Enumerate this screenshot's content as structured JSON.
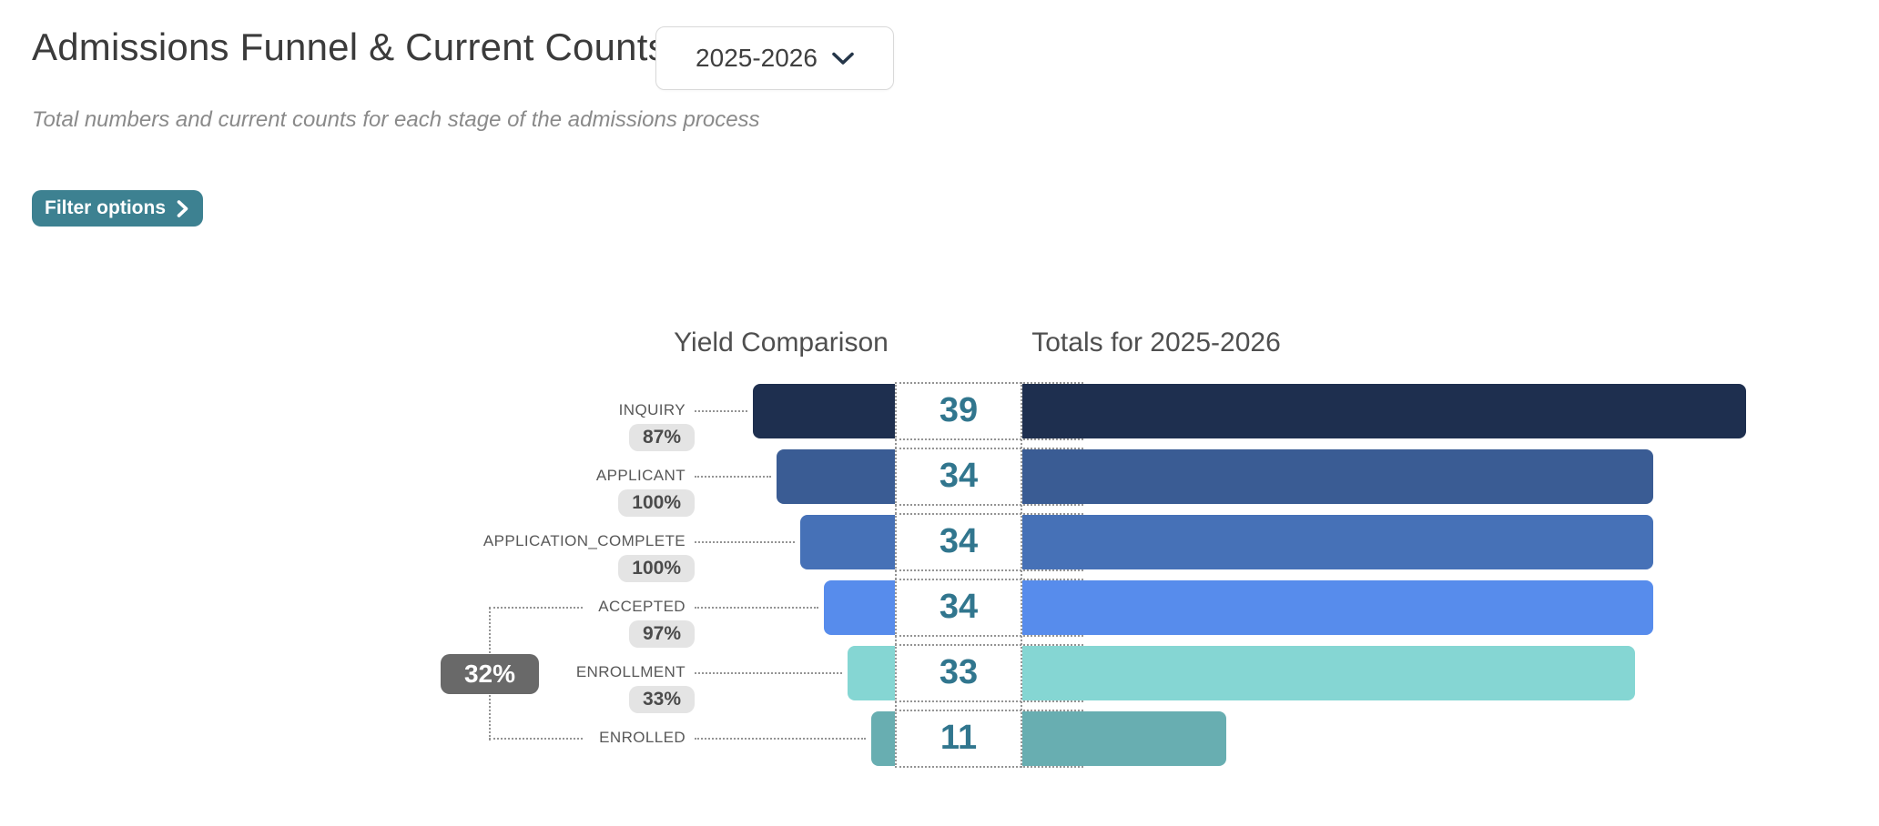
{
  "header": {
    "title": "Admissions Funnel & Current Counts",
    "year_dropdown": {
      "value": "2025-2026"
    },
    "subtitle": "Total numbers and current counts for each stage of the admissions process",
    "filter_button_label": "Filter options"
  },
  "chart": {
    "left_column_header": "Yield Comparison",
    "right_column_header": "Totals for 2025-2026",
    "overall_yield_badge": "32%",
    "stages": [
      {
        "label": "INQUIRY",
        "count": 39,
        "yield": "87%",
        "color": "#1e2f4f"
      },
      {
        "label": "APPLICANT",
        "count": 34,
        "yield": "100%",
        "color": "#3a5c94"
      },
      {
        "label": "APPLICATION_COMPLETE",
        "count": 34,
        "yield": "100%",
        "color": "#4671b7"
      },
      {
        "label": "ACCEPTED",
        "count": 34,
        "yield": "97%",
        "color": "#578cec"
      },
      {
        "label": "ENROLLMENT",
        "count": 33,
        "yield": "33%",
        "color": "#85d6d3"
      },
      {
        "label": "ENROLLED",
        "count": 11,
        "yield": null,
        "color": "#68aeb1"
      }
    ]
  },
  "chart_data": {
    "type": "bar",
    "variant": "funnel",
    "title": "Admissions Funnel & Current Counts",
    "period": "2025-2026",
    "columns": [
      "Yield Comparison",
      "Totals for 2025-2026"
    ],
    "categories": [
      "INQUIRY",
      "APPLICANT",
      "APPLICATION_COMPLETE",
      "ACCEPTED",
      "ENROLLMENT",
      "ENROLLED"
    ],
    "values": [
      39,
      34,
      34,
      34,
      33,
      11
    ],
    "yield_percentages": [
      "87%",
      "100%",
      "100%",
      "97%",
      "33%",
      null
    ],
    "accepted_to_enrolled_yield": "32%",
    "colors": [
      "#1e2f4f",
      "#3a5c94",
      "#4671b7",
      "#578cec",
      "#85d6d3",
      "#68aeb1"
    ],
    "legend_position": "none",
    "grid": false
  }
}
